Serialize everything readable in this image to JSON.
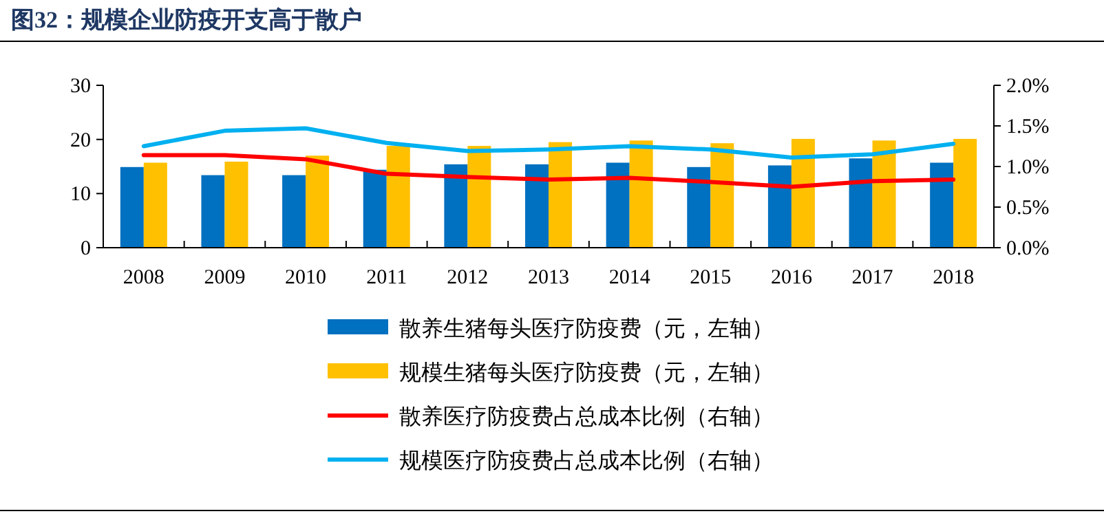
{
  "chart_data": {
    "type": "bar",
    "title": "图32：规模企业防疫开支高于散户",
    "categories": [
      "2008",
      "2009",
      "2010",
      "2011",
      "2012",
      "2013",
      "2014",
      "2015",
      "2016",
      "2017",
      "2018"
    ],
    "series": [
      {
        "name": "散养生猪每头医疗防疫费（元，左轴）",
        "color": "#0070c0",
        "values": [
          14.9,
          13.4,
          13.4,
          14.4,
          15.4,
          15.4,
          15.7,
          14.9,
          15.2,
          16.5,
          15.7
        ]
      },
      {
        "name": "规模生猪每头医疗防疫费（元，左轴）",
        "color": "#ffc000",
        "values": [
          15.7,
          15.9,
          17.0,
          18.8,
          18.8,
          19.5,
          19.8,
          19.3,
          20.1,
          19.8,
          20.1
        ]
      },
      {
        "name": "散养医疗防疫费占总成本比例（右轴）",
        "type": "line",
        "axis": "y2",
        "color": "#ff0000",
        "values": [
          1.14,
          1.14,
          1.09,
          0.91,
          0.87,
          0.84,
          0.86,
          0.81,
          0.75,
          0.82,
          0.84
        ]
      },
      {
        "name": "规模医疗防疫费占总成本比例（右轴）",
        "type": "line",
        "axis": "y2",
        "color": "#00b0f0",
        "values": [
          1.25,
          1.44,
          1.47,
          1.29,
          1.19,
          1.21,
          1.25,
          1.21,
          1.11,
          1.15,
          1.28
        ]
      }
    ],
    "ylim": [
      0,
      30
    ],
    "yticks": [
      0,
      10,
      20,
      30
    ],
    "y2lim": [
      0,
      2
    ],
    "y2ticks": [
      {
        "value": 0,
        "label": "0.0%"
      },
      {
        "value": 0.5,
        "label": "0.5%"
      },
      {
        "value": 1,
        "label": "1.0%"
      },
      {
        "value": 1.5,
        "label": "1.5%"
      },
      {
        "value": 2,
        "label": "2.0%"
      }
    ],
    "legend": "bottom",
    "grid": false,
    "marker": "none",
    "line_style": "solid"
  }
}
